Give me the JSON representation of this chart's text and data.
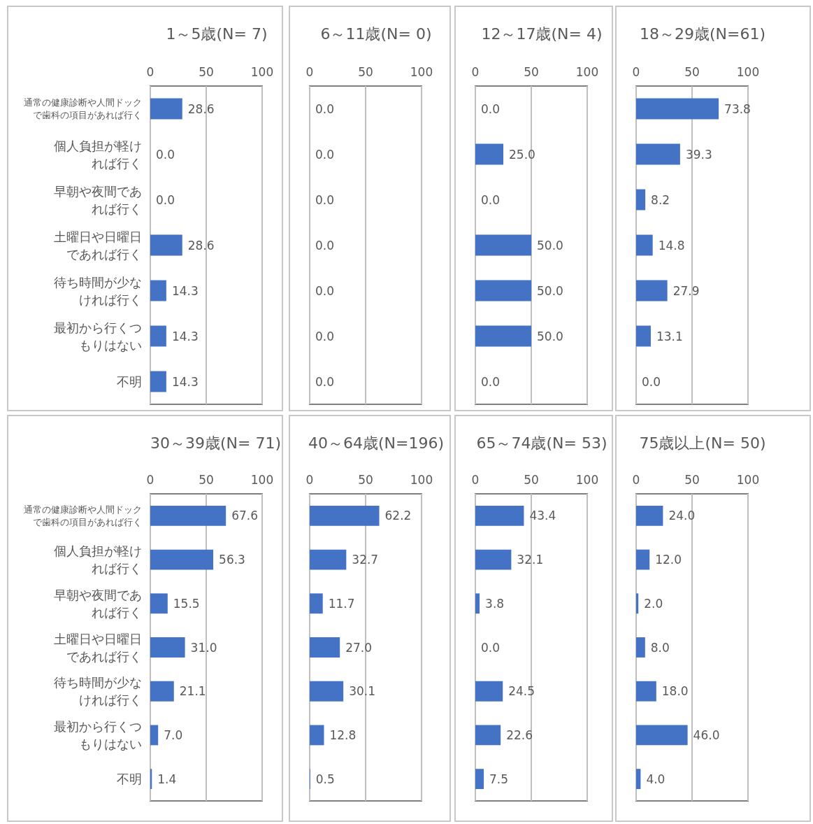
{
  "chart_data": [
    {
      "type": "bar",
      "orientation": "horizontal",
      "title": "1～5歳(N= 7)",
      "categories": [
        "通常の健康診断や人間ドックで歯科の項目があれば行く",
        "個人負担が軽ければ行く",
        "早朝や夜間であれば行く",
        "土曜日や日曜日であれば行く",
        "待ち時間が少なければ行く",
        "最初から行くつもりはない",
        "不明"
      ],
      "values": [
        28.6,
        0,
        0,
        28.6,
        14.3,
        14.3,
        14.3
      ],
      "value_labels": [
        "28.6",
        "0.0",
        "0.0",
        "28.6",
        "14.3",
        "14.3",
        "14.3"
      ],
      "color": "#4472c4",
      "xlim": [
        0,
        100
      ],
      "xticks": [
        0,
        50,
        100
      ],
      "grid": "x"
    },
    {
      "type": "bar",
      "orientation": "horizontal",
      "title": "6～11歳(N= 0)",
      "categories": [
        "通常の健康診断や人間ドックで歯科の項目があれば行く",
        "個人負担が軽ければ行く",
        "早朝や夜間であれば行く",
        "土曜日や日曜日であれば行く",
        "待ち時間が少なければ行く",
        "最初から行くつもりはない",
        "不明"
      ],
      "values": [
        0,
        0,
        0,
        0,
        0,
        0,
        0
      ],
      "value_labels": [
        "0.0",
        "0.0",
        "0.0",
        "0.0",
        "0.0",
        "0.0",
        "0.0"
      ],
      "color": "#4472c4",
      "xlim": [
        0,
        100
      ],
      "xticks": [
        0,
        50,
        100
      ],
      "grid": "x",
      "tick_labels": "x"
    },
    {
      "type": "bar",
      "orientation": "horizontal",
      "title": "12～17歳(N= 4)",
      "categories": [
        "通常の健康診断や人間ドックで歯科の項目があれば行く",
        "個人負担が軽ければ行く",
        "早朝や夜間であれば行く",
        "土曜日や日曜日であれば行く",
        "待ち時間が少なければ行く",
        "最初から行くつもりはない",
        "不明"
      ],
      "values": [
        0,
        25,
        0,
        50,
        50,
        50,
        0
      ],
      "value_labels": [
        "0.0",
        "25.0",
        "0.0",
        "50.0",
        "50.0",
        "50.0",
        "0.0"
      ],
      "color": "#4472c4",
      "xlim": [
        0,
        100
      ],
      "xticks": [
        0,
        50,
        100
      ],
      "grid": "x",
      "tick_labels": "x"
    },
    {
      "type": "bar",
      "orientation": "horizontal",
      "title": "18～29歳(N=61)",
      "categories": [
        "通常の健康診断や人間ドックで歯科の項目があれば行く",
        "個人負担が軽ければ行く",
        "早朝や夜間であれば行く",
        "土曜日や日曜日であれば行く",
        "待ち時間が少なければ行く",
        "最初から行くつもりはない",
        "不明"
      ],
      "values": [
        73.8,
        39.3,
        8.2,
        14.8,
        27.9,
        13.1,
        0
      ],
      "value_labels": [
        "73.8",
        "39.3",
        "8.2",
        "14.8",
        "27.9",
        "13.1",
        "0.0"
      ],
      "color": "#4472c4",
      "xlim": [
        0,
        100
      ],
      "xticks": [
        0,
        50,
        100
      ],
      "grid": "x",
      "tick_labels": "x"
    },
    {
      "type": "bar",
      "orientation": "horizontal",
      "title": "30～39歳(N= 71)",
      "categories": [
        "通常の健康診断や人間ドックで歯科の項目があれば行く",
        "個人負担が軽ければ行く",
        "早朝や夜間であれば行く",
        "土曜日や日曜日であれば行く",
        "待ち時間が少なければ行く",
        "最初から行くつもりはない",
        "不明"
      ],
      "values": [
        67.6,
        56.3,
        15.5,
        31.0,
        21.1,
        7.0,
        1.4
      ],
      "value_labels": [
        "67.6",
        "56.3",
        "15.5",
        "31.0",
        "21.1",
        "7.0",
        "1.4"
      ],
      "color": "#4472c4",
      "xlim": [
        0,
        100
      ],
      "xticks": [
        0,
        50,
        100
      ],
      "grid": "x"
    },
    {
      "type": "bar",
      "orientation": "horizontal",
      "title": "40～64歳(N=196)",
      "categories": [
        "通常の健康診断や人間ドックで歯科の項目があれば行く",
        "個人負担が軽ければ行く",
        "早朝や夜間であれば行く",
        "土曜日や日曜日であれば行く",
        "待ち時間が少なければ行く",
        "最初から行くつもりはない",
        "不明"
      ],
      "values": [
        62.2,
        32.7,
        11.7,
        27.0,
        30.1,
        12.8,
        0.5
      ],
      "value_labels": [
        "62.2",
        "32.7",
        "11.7",
        "27.0",
        "30.1",
        "12.8",
        "0.5"
      ],
      "color": "#4472c4",
      "xlim": [
        0,
        100
      ],
      "xticks": [
        0,
        50,
        100
      ],
      "grid": "x",
      "tick_labels": "x"
    },
    {
      "type": "bar",
      "orientation": "horizontal",
      "title": "65～74歳(N= 53)",
      "categories": [
        "通常の健康診断や人間ドックで歯科の項目があれば行く",
        "個人負担が軽ければ行く",
        "早朝や夜間であれば行く",
        "土曜日や日曜日であれば行く",
        "待ち時間が少なければ行く",
        "最初から行くつもりはない",
        "不明"
      ],
      "values": [
        43.4,
        32.1,
        3.8,
        0,
        24.5,
        22.6,
        7.5
      ],
      "value_labels": [
        "43.4",
        "32.1",
        "3.8",
        "0.0",
        "24.5",
        "22.6",
        "7.5"
      ],
      "color": "#4472c4",
      "xlim": [
        0,
        100
      ],
      "xticks": [
        0,
        50,
        100
      ],
      "grid": "x",
      "tick_labels": "x"
    },
    {
      "type": "bar",
      "orientation": "horizontal",
      "title": "75歳以上(N= 50)",
      "categories": [
        "通常の健康診断や人間ドックで歯科の項目があれば行く",
        "個人負担が軽ければ行く",
        "早朝や夜間であれば行く",
        "土曜日や日曜日であれば行く",
        "待ち時間が少なければ行く",
        "最初から行くつもりはない",
        "不明"
      ],
      "values": [
        24.0,
        12.0,
        2.0,
        8.0,
        18.0,
        46.0,
        4.0
      ],
      "value_labels": [
        "24.0",
        "12.0",
        "2.0",
        "8.0",
        "18.0",
        "46.0",
        "4.0"
      ],
      "color": "#4472c4",
      "xlim": [
        0,
        100
      ],
      "xticks": [
        0,
        50,
        100
      ],
      "grid": "x",
      "tick_labels": "x"
    }
  ]
}
